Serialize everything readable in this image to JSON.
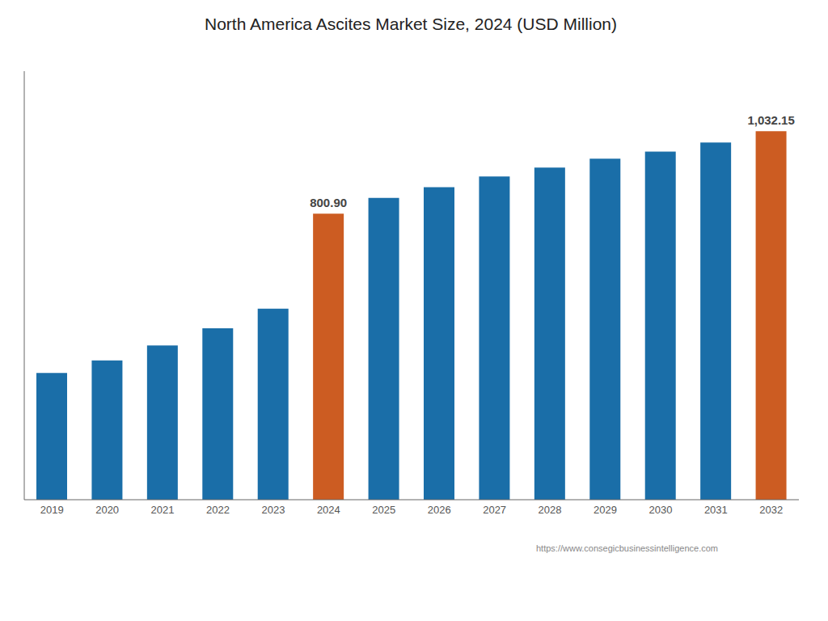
{
  "chart_data": {
    "type": "bar",
    "title": "North America Ascites Market Size, 2024 (USD Million)",
    "categories": [
      "2019",
      "2020",
      "2021",
      "2022",
      "2023",
      "2024",
      "2025",
      "2026",
      "2027",
      "2028",
      "2029",
      "2030",
      "2031",
      "2032"
    ],
    "values": [
      355,
      390,
      432,
      480,
      535,
      800.9,
      845,
      875,
      905,
      930,
      955,
      975,
      1000,
      1032.15
    ],
    "value_labels": [
      null,
      null,
      null,
      null,
      null,
      "800.90",
      null,
      null,
      null,
      null,
      null,
      null,
      null,
      "1,032.15"
    ],
    "data_labels": true,
    "colors": [
      "#1a6ea8",
      "#1a6ea8",
      "#1a6ea8",
      "#1a6ea8",
      "#1a6ea8",
      "#cc5c22",
      "#1a6ea8",
      "#1a6ea8",
      "#1a6ea8",
      "#1a6ea8",
      "#1a6ea8",
      "#1a6ea8",
      "#1a6ea8",
      "#cc5c22"
    ],
    "ylim": [
      0,
      1200
    ],
    "tick_labels": "x",
    "grid": false,
    "annotations": [
      "https://www.consegicbusinessintelligence.com"
    ]
  }
}
